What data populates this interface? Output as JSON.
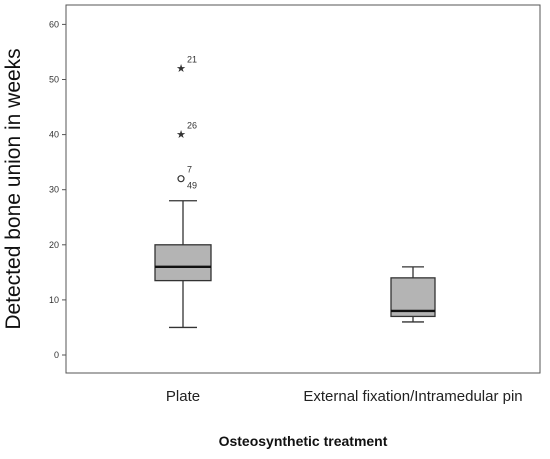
{
  "chart_data": {
    "type": "boxplot",
    "xlabel": "Osteosynthetic treatment",
    "ylabel": "Detected bone union in weeks",
    "ylim": [
      -3,
      63
    ],
    "yticks": [
      0,
      10,
      20,
      30,
      40,
      50,
      60
    ],
    "ytick_labels": [
      "0",
      "10",
      "20",
      "30",
      "40",
      "50",
      "60"
    ],
    "grid": false,
    "legend": false,
    "categories": [
      "Plate",
      "External fixation/Intramedular pin"
    ],
    "series": [
      {
        "category": "Plate",
        "whisker_low": 5,
        "q1": 13.5,
        "median": 16,
        "q3": 20,
        "whisker_high": 28,
        "outliers": [
          {
            "label": "49",
            "value": 32,
            "marker": "circle"
          },
          {
            "label": "7",
            "value": 32,
            "marker": "circle"
          },
          {
            "label": "26",
            "value": 40,
            "marker": "star"
          },
          {
            "label": "21",
            "value": 52,
            "marker": "star"
          }
        ]
      },
      {
        "category": "External fixation/Intramedular pin",
        "whisker_low": 6,
        "q1": 7,
        "median": 8,
        "q3": 14,
        "whisker_high": 16,
        "outliers": []
      }
    ],
    "colors": {
      "box_fill": "#b4b4b4",
      "stroke": "#333333",
      "axis": "#555555"
    }
  }
}
